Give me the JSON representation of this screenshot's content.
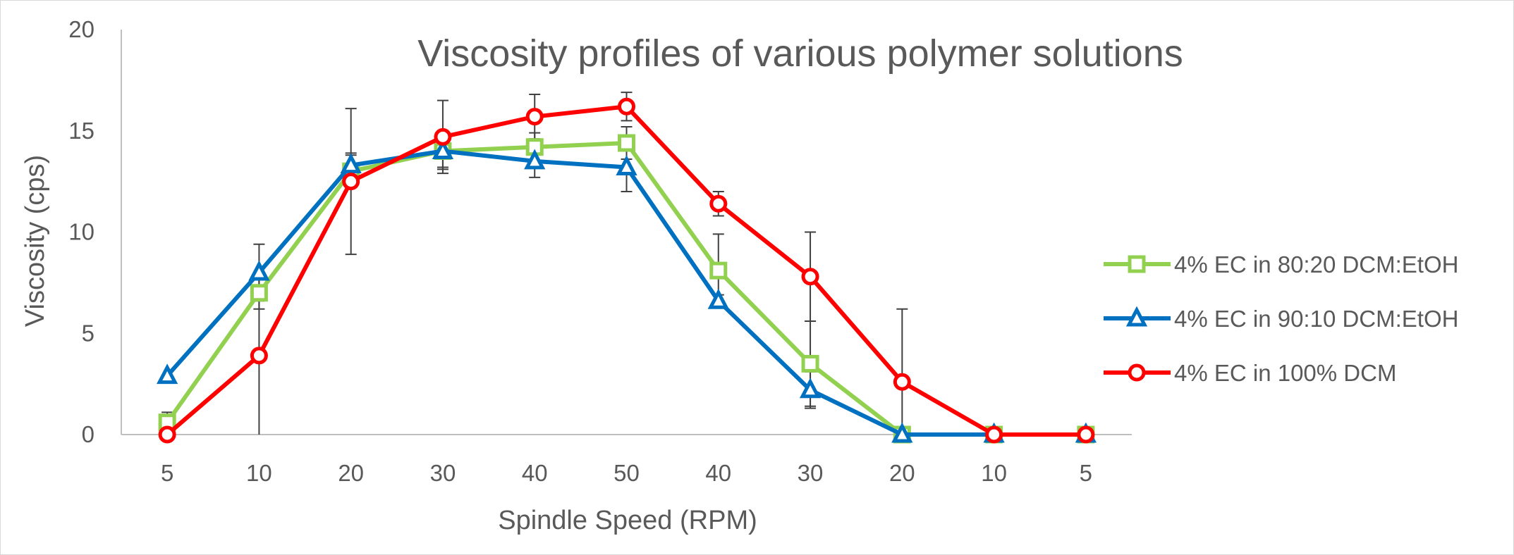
{
  "chart_data": {
    "type": "line",
    "title": "Viscosity profiles of various polymer solutions",
    "xlabel": "Spindle Speed (RPM)",
    "ylabel": "Viscosity (cps)",
    "categories": [
      "5",
      "10",
      "20",
      "30",
      "40",
      "50",
      "40",
      "30",
      "20",
      "10",
      "5"
    ],
    "ylim": [
      0,
      20
    ],
    "yticks": [
      0,
      5,
      10,
      15,
      20
    ],
    "grid": false,
    "legend_position": "right",
    "series": [
      {
        "name": "4% EC in 80:20 DCM:EtOH",
        "color": "#92d050",
        "marker": "square",
        "values": [
          0.6,
          7.0,
          13.0,
          14.0,
          14.2,
          14.4,
          8.1,
          3.5,
          0.0,
          0.0,
          0.0
        ],
        "error": [
          0.5,
          0.8,
          0.8,
          0.8,
          0.7,
          0.8,
          1.8,
          2.1,
          0.0,
          0.0,
          0.0
        ]
      },
      {
        "name": "4% EC in 90:10 DCM:EtOH",
        "color": "#0070c0",
        "marker": "triangle",
        "values": [
          2.9,
          8.0,
          13.3,
          14.0,
          13.5,
          13.2,
          6.6,
          2.2,
          0.0,
          0.0,
          0.0
        ],
        "error": [
          0.0,
          1.4,
          0.6,
          0.9,
          0.8,
          1.2,
          0.3,
          0.9,
          0.0,
          0.0,
          0.0
        ]
      },
      {
        "name": "4% EC in 100% DCM",
        "color": "#ff0000",
        "marker": "circle",
        "values": [
          0.0,
          3.9,
          12.5,
          14.7,
          15.7,
          16.2,
          11.4,
          7.8,
          2.6,
          0.0,
          0.0
        ],
        "error": [
          0.0,
          3.9,
          3.6,
          1.8,
          1.1,
          0.7,
          0.6,
          2.2,
          3.6,
          0.0,
          0.0
        ]
      }
    ]
  }
}
